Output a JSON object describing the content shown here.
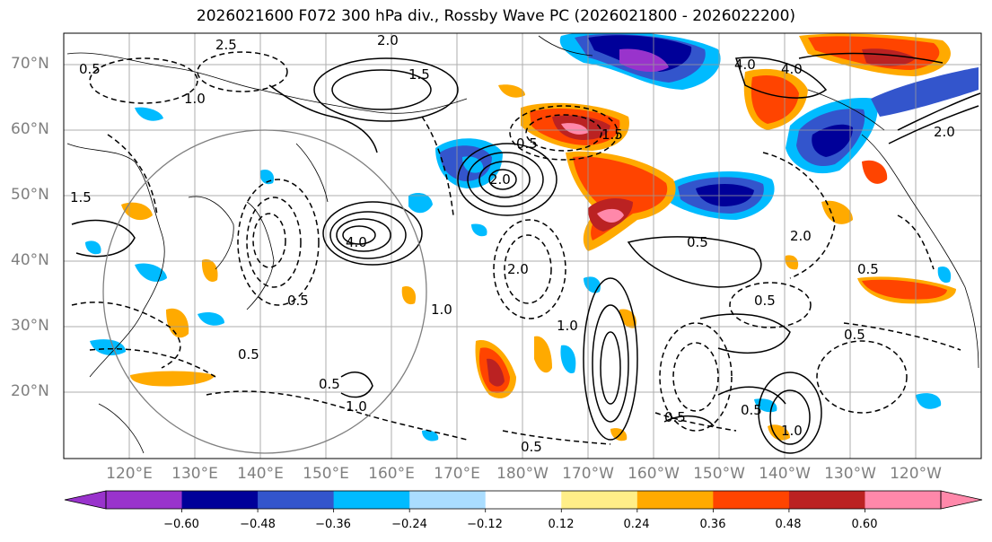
{
  "title": "2026021600 F072 300 hPa div., Rossby Wave PC (2026021800 - 2026022200)",
  "lat_labels": [
    "70°N",
    "60°N",
    "50°N",
    "40°N",
    "30°N",
    "20°N"
  ],
  "lon_labels": [
    "120°E",
    "130°E",
    "140°E",
    "150°E",
    "160°E",
    "170°E",
    "180°W",
    "170°W",
    "160°W",
    "150°W",
    "140°W",
    "130°W",
    "120°W"
  ],
  "colorbar": {
    "colors": [
      "#9933cc",
      "#000099",
      "#3355cc",
      "#00bbff",
      "#aaddff",
      "#ffffff",
      "#ffee88",
      "#ffaa00",
      "#ff4400",
      "#bb2222",
      "#ff88aa"
    ],
    "tick_labels": [
      "−0.60",
      "−0.48",
      "−0.36",
      "−0.24",
      "−0.12",
      "0.12",
      "0.24",
      "0.36",
      "0.48",
      "0.60"
    ]
  },
  "contour_labels": [
    "0.5",
    "1.0",
    "1.5",
    "2.0",
    "4.0",
    "2.0",
    "1.0",
    "0.5",
    "1.0",
    "4.0",
    "2.0",
    "0.5",
    "2.5",
    "1.5",
    "0.5",
    "2.0",
    "0.5",
    "1.0",
    "0.5",
    "0.5",
    "0.5",
    "0.5",
    "1.0",
    "0.5",
    "1.5",
    "0.5",
    "4.0",
    "2.0",
    "0.5"
  ]
}
